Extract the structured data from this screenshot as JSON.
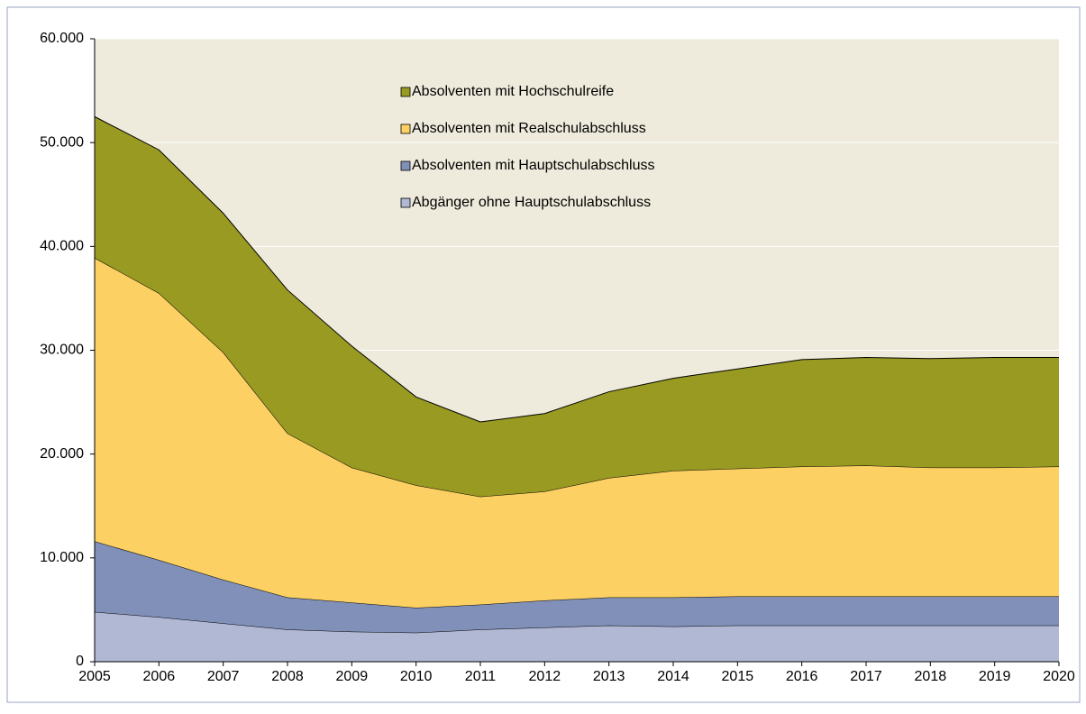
{
  "chart_data": {
    "type": "stacked_area",
    "x": [
      "2005",
      "2006",
      "2007",
      "2008",
      "2009",
      "2010",
      "2011",
      "2012",
      "2013",
      "2014",
      "2015",
      "2016",
      "2017",
      "2018",
      "2019",
      "2020"
    ],
    "series": [
      {
        "name": "Abgänger ohne Hauptschulabschluss",
        "color": "#b0b8d4",
        "values": [
          4800,
          4300,
          3700,
          3100,
          2900,
          2800,
          3100,
          3300,
          3500,
          3400,
          3500,
          3500,
          3500,
          3500,
          3500,
          3500
        ]
      },
      {
        "name": "Absolventen mit Hauptschulabschluss",
        "color": "#8090b8",
        "values": [
          6800,
          5500,
          4200,
          3100,
          2800,
          2400,
          2400,
          2600,
          2700,
          2800,
          2800,
          2800,
          2800,
          2800,
          2800,
          2800
        ]
      },
      {
        "name": "Absolventen mit Realschulabschluss",
        "color": "#fdd063",
        "values": [
          27300,
          25700,
          21900,
          15800,
          13000,
          11800,
          10400,
          10500,
          11500,
          12200,
          12300,
          12500,
          12600,
          12400,
          12400,
          12500
        ]
      },
      {
        "name": "Absolventen mit Hochschulreife",
        "color": "#999a22",
        "values": [
          13600,
          13800,
          13400,
          13800,
          11700,
          8500,
          7200,
          7500,
          8300,
          8900,
          9600,
          10300,
          10400,
          10500,
          10600,
          10500
        ]
      }
    ],
    "ylim": [
      0,
      60000
    ],
    "yticks": [
      0,
      {
        "value": 10000,
        "label": "10.000"
      },
      {
        "value": 20000,
        "label": "20.000"
      },
      {
        "value": 30000,
        "label": "30.000"
      },
      {
        "value": 40000,
        "label": "40.000"
      },
      {
        "value": 50000,
        "label": "50.000"
      },
      {
        "value": 60000,
        "label": "60.000"
      }
    ],
    "grid": true,
    "legend": "top"
  }
}
